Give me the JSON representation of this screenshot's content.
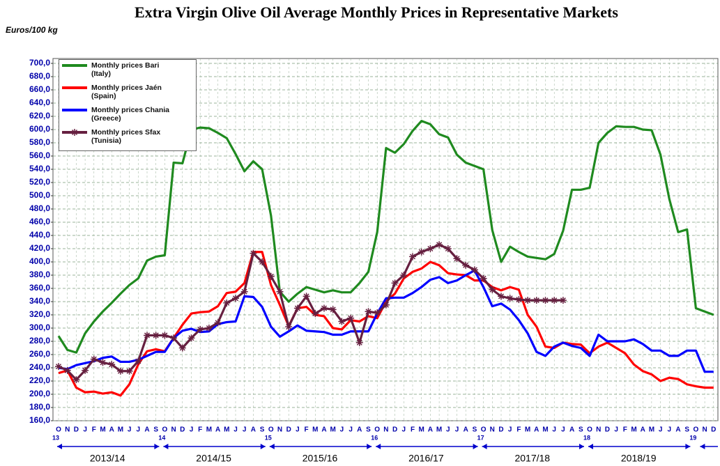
{
  "chart_data": {
    "type": "line",
    "title": "Extra Virgin Olive Oil Average Monthly Prices in Representative Markets",
    "y_axis_label": "Euros/100 kg",
    "categories": [
      "O",
      "N",
      "D",
      "J",
      "F",
      "M",
      "A",
      "M",
      "J",
      "J",
      "A",
      "S",
      "O",
      "N",
      "D",
      "J",
      "F",
      "M",
      "A",
      "M",
      "J",
      "J",
      "A",
      "S",
      "O",
      "N",
      "D",
      "J",
      "F",
      "M",
      "A",
      "M",
      "J",
      "J",
      "A",
      "S",
      "O",
      "N",
      "D",
      "J",
      "F",
      "M",
      "A",
      "M",
      "J",
      "J",
      "A",
      "S",
      "O",
      "N",
      "D",
      "J",
      "F",
      "M",
      "A",
      "M",
      "J",
      "J",
      "A",
      "S",
      "O",
      "N",
      "D",
      "J",
      "F",
      "M",
      "A",
      "M",
      "J",
      "J",
      "A",
      "S",
      "O",
      "N",
      "D"
    ],
    "year_labels": [
      "13",
      "14",
      "15",
      "16",
      "17",
      "18",
      "19"
    ],
    "seasons": [
      "2013/14",
      "2014/15",
      "2015/16",
      "2016/17",
      "2017/18",
      "2018/19"
    ],
    "series": [
      {
        "name": "Monthly prices Bari (Italy)",
        "color": "#1f8a1f",
        "values": [
          288,
          267,
          263,
          292,
          310,
          325,
          338,
          352,
          365,
          375,
          402,
          408,
          410,
          550,
          549,
          600,
          603,
          602,
          595,
          587,
          563,
          537,
          552,
          540,
          470,
          355,
          340,
          352,
          362,
          358,
          354,
          357,
          354,
          354,
          368,
          385,
          445,
          572,
          565,
          578,
          598,
          613,
          608,
          593,
          588,
          562,
          550,
          545,
          540,
          448,
          400,
          423,
          415,
          408,
          406,
          404,
          412,
          447,
          509,
          509,
          512,
          580,
          595,
          605,
          604,
          604,
          600,
          599,
          562,
          495,
          445,
          449,
          330,
          325,
          320
        ]
      },
      {
        "name": "Monthly prices Jaén (Spain)",
        "color": "#ff0000",
        "values": [
          232,
          236,
          210,
          203,
          204,
          201,
          203,
          198,
          215,
          245,
          265,
          268,
          265,
          285,
          305,
          322,
          324,
          325,
          333,
          353,
          355,
          368,
          415,
          415,
          365,
          335,
          303,
          330,
          332,
          320,
          318,
          300,
          298,
          312,
          310,
          318,
          315,
          340,
          352,
          375,
          385,
          390,
          400,
          395,
          383,
          381,
          380,
          372,
          372,
          362,
          357,
          362,
          358,
          320,
          302,
          272,
          270,
          278,
          276,
          275,
          262,
          272,
          278,
          270,
          262,
          245,
          235,
          230,
          220,
          225,
          223,
          215,
          212,
          210,
          210
        ]
      },
      {
        "name": "Monthly prices Chania (Greece)",
        "color": "#0000ff",
        "values": [
          240,
          238,
          244,
          247,
          250,
          255,
          257,
          249,
          249,
          252,
          258,
          264,
          264,
          285,
          296,
          299,
          294,
          295,
          306,
          309,
          310,
          348,
          347,
          332,
          302,
          287,
          295,
          304,
          296,
          295,
          294,
          290,
          290,
          295,
          295,
          295,
          322,
          345,
          346,
          346,
          353,
          362,
          373,
          377,
          368,
          372,
          380,
          387,
          362,
          333,
          337,
          328,
          312,
          292,
          264,
          258,
          272,
          278,
          273,
          270,
          258,
          290,
          280,
          280,
          280,
          283,
          276,
          266,
          266,
          258,
          258,
          266,
          266,
          234,
          234
        ]
      },
      {
        "name": "Monthly prices Sfax (Tunisia)",
        "color": "#662040",
        "marker": "star",
        "values": [
          242,
          236,
          222,
          236,
          253,
          248,
          245,
          235,
          235,
          250,
          289,
          289,
          289,
          285,
          270,
          285,
          298,
          300,
          308,
          338,
          345,
          355,
          413,
          400,
          378,
          355,
          302,
          330,
          348,
          322,
          330,
          328,
          310,
          315,
          278,
          325,
          323,
          335,
          368,
          380,
          408,
          415,
          420,
          426,
          420,
          405,
          395,
          388,
          375,
          358,
          348,
          345,
          343,
          342,
          342,
          342,
          342,
          342,
          null,
          null,
          null,
          null,
          null,
          null,
          null,
          null,
          null,
          null,
          null,
          null,
          null,
          null,
          null,
          null,
          null
        ]
      }
    ],
    "ylim": [
      160,
      700
    ],
    "yticks": [
      {
        "value": 160,
        "label": "160,0"
      },
      {
        "value": 180,
        "label": "180,0"
      },
      {
        "value": 200,
        "label": "200,0"
      },
      {
        "value": 220,
        "label": "220,0"
      },
      {
        "value": 240,
        "label": "240,0"
      },
      {
        "value": 260,
        "label": "260,0"
      },
      {
        "value": 280,
        "label": "280,0"
      },
      {
        "value": 300,
        "label": "300,0"
      },
      {
        "value": 320,
        "label": "320,0"
      },
      {
        "value": 340,
        "label": "340,0"
      },
      {
        "value": 360,
        "label": "360,0"
      },
      {
        "value": 380,
        "label": "380,0"
      },
      {
        "value": 400,
        "label": "400,0"
      },
      {
        "value": 420,
        "label": "420,0"
      },
      {
        "value": 440,
        "label": "440,0"
      },
      {
        "value": 460,
        "label": "460,0"
      },
      {
        "value": 480,
        "label": "480,0"
      },
      {
        "value": 500,
        "label": "500,0"
      },
      {
        "value": 520,
        "label": "520,0"
      },
      {
        "value": 540,
        "label": "540,0"
      },
      {
        "value": 560,
        "label": "560,0"
      },
      {
        "value": 580,
        "label": "580,0"
      },
      {
        "value": 600,
        "label": "600,0"
      },
      {
        "value": 620,
        "label": "620,0"
      },
      {
        "value": 640,
        "label": "640,0"
      },
      {
        "value": 660,
        "label": "660,0"
      },
      {
        "value": 680,
        "label": "680,0"
      },
      {
        "value": 700,
        "label": "700,0"
      }
    ],
    "grid": true
  }
}
